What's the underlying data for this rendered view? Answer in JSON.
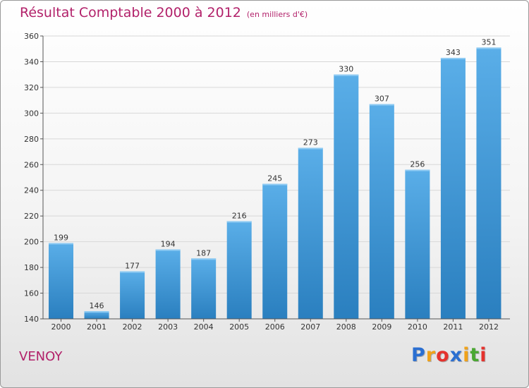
{
  "chart_data": {
    "type": "bar",
    "title": "Résultat Comptable 2000 à 2012",
    "subtitle": "(en milliers d'€)",
    "categories": [
      "2000",
      "2001",
      "2002",
      "2003",
      "2004",
      "2005",
      "2006",
      "2007",
      "2008",
      "2009",
      "2010",
      "2011",
      "2012"
    ],
    "values": [
      199,
      146,
      177,
      194,
      187,
      216,
      245,
      273,
      330,
      307,
      256,
      343,
      351
    ],
    "ylim": [
      140,
      360
    ],
    "yticks": [
      140,
      160,
      180,
      200,
      220,
      240,
      260,
      280,
      300,
      320,
      340,
      360
    ],
    "xlabel": "",
    "ylabel": "",
    "grid": true
  },
  "location": "VENOY",
  "brand": {
    "letters": [
      "P",
      "r",
      "o",
      "x",
      "i",
      "t",
      "i"
    ],
    "colors": [
      "#2b6fd1",
      "#f0a21a",
      "#e5322d",
      "#2b6fd1",
      "#f0a21a",
      "#4aa832",
      "#e5322d"
    ]
  },
  "colors": {
    "title": "#b2216a",
    "bar_top": "#5aaee8",
    "bar_bottom": "#2a7fbf",
    "grid": "#d8d8d8"
  }
}
